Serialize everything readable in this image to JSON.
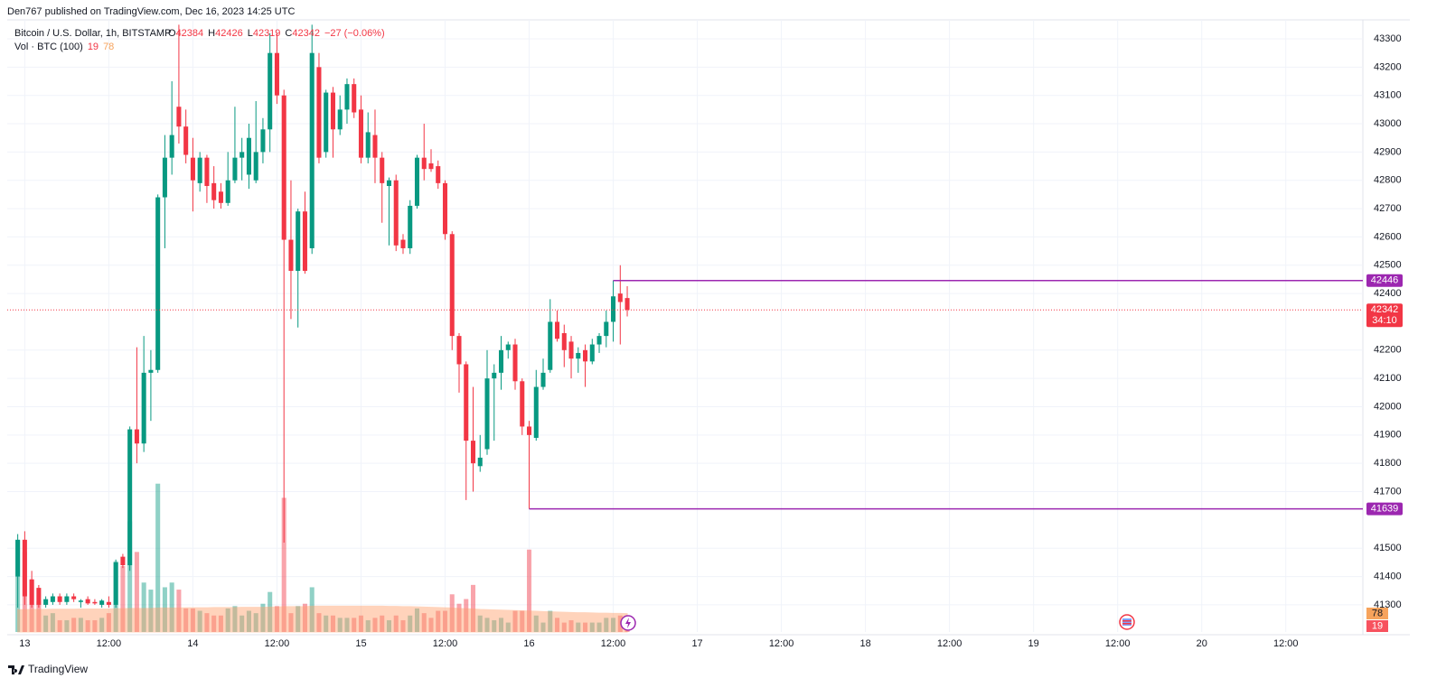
{
  "chart_data": {
    "type": "candlestick",
    "header": "Den767 published on TradingView.com, Dec 16, 2023 14:25 UTC",
    "title": "Bitcoin / U.S. Dollar, 1h, BITSTAMP",
    "legend_labels": [
      "O",
      "H",
      "L",
      "C"
    ],
    "change": "−27 (−0.06%)",
    "volume_title": "Vol · BTC (100)",
    "countdown": "34:10",
    "brand": "TradingView",
    "up_color": "#089981",
    "down_color": "#f23645",
    "volume_ma_color": "#ff9f6b",
    "grid": true,
    "time_hours": [
      -1,
      0,
      1,
      2,
      3,
      4,
      5,
      6,
      7,
      8,
      9,
      10,
      11,
      12,
      13,
      14,
      15,
      16,
      17,
      18,
      19,
      20,
      21,
      22,
      23,
      24,
      25,
      26,
      27,
      28,
      29,
      30,
      31,
      32,
      33,
      34,
      35,
      36,
      37,
      38,
      39,
      40,
      41,
      42,
      43,
      44,
      45,
      46,
      47,
      48,
      49,
      50,
      51,
      52,
      53,
      54,
      55,
      56,
      57,
      58,
      59,
      60,
      61,
      62,
      63,
      64,
      65,
      66,
      67,
      68,
      69,
      70,
      71,
      72,
      73,
      74,
      75,
      76,
      77,
      78,
      79,
      80,
      81,
      82,
      83,
      84,
      85,
      86
    ],
    "open": [
      41400,
      41530,
      41390,
      41360,
      41300,
      41310,
      41330,
      41310,
      41330,
      41310,
      41320,
      41310,
      41300,
      41310,
      41300,
      41470,
      41440,
      41920,
      41870,
      42120,
      42130,
      42740,
      42880,
      43060,
      42990,
      42880,
      42790,
      42880,
      42790,
      42760,
      42720,
      42800,
      42880,
      42820,
      42800,
      42900,
      42980,
      43250,
      43100,
      42590,
      42480,
      42690,
      42560,
      43200,
      42900,
      43110,
      42980,
      43050,
      43140,
      43050,
      42880,
      42960,
      42880,
      42780,
      42800,
      42590,
      42560,
      42710,
      42880,
      42860,
      42850,
      42790,
      42610,
      42250,
      42150,
      41880,
      41790,
      41850,
      42100,
      42120,
      42200,
      42220,
      42090,
      41930,
      41890,
      42070,
      42130,
      42300,
      42260,
      42230,
      42170,
      42200,
      42160,
      42220,
      42250,
      42300,
      42400,
      42384
    ],
    "high": [
      41550,
      41560,
      41420,
      41370,
      41330,
      41340,
      41340,
      41340,
      41340,
      41320,
      41330,
      41320,
      41320,
      41330,
      41460,
      41480,
      41930,
      42210,
      42250,
      42200,
      42750,
      42960,
      43150,
      43350,
      43050,
      42950,
      42900,
      42890,
      42850,
      42790,
      42900,
      43060,
      42950,
      43000,
      43080,
      43020,
      43320,
      43320,
      43120,
      42800,
      42700,
      42760,
      43350,
      43250,
      43120,
      43130,
      43100,
      43160,
      43160,
      43100,
      43040,
      43050,
      42900,
      42810,
      42820,
      42610,
      42730,
      42890,
      43000,
      42910,
      42870,
      42800,
      42620,
      42260,
      42160,
      42070,
      41900,
      42200,
      42150,
      42250,
      42230,
      42240,
      42100,
      41950,
      42130,
      42170,
      42380,
      42340,
      42290,
      42250,
      42210,
      42220,
      42240,
      42260,
      42340,
      42446,
      42500,
      42426
    ],
    "low": [
      41290,
      41300,
      41290,
      41290,
      41290,
      41300,
      41300,
      41300,
      41310,
      41290,
      41300,
      41300,
      41290,
      41290,
      41290,
      41430,
      41420,
      41800,
      41840,
      41950,
      42120,
      42560,
      42820,
      42930,
      42860,
      42690,
      42760,
      42720,
      42700,
      42700,
      42710,
      42790,
      42800,
      42770,
      42790,
      42860,
      42900,
      43070,
      41520,
      42310,
      42280,
      42470,
      42540,
      42860,
      42880,
      42880,
      42960,
      43000,
      43020,
      42860,
      42860,
      42790,
      42650,
      42570,
      42550,
      42540,
      42540,
      42700,
      42800,
      42830,
      42770,
      42590,
      42200,
      42050,
      41670,
      41700,
      41770,
      41830,
      41880,
      42060,
      42170,
      42060,
      41900,
      41639,
      41880,
      42060,
      42120,
      42230,
      42140,
      42100,
      42120,
      42070,
      42150,
      42190,
      42210,
      42230,
      42220,
      42319
    ],
    "close": [
      41530,
      41330,
      41300,
      41300,
      41320,
      41330,
      41310,
      41330,
      41320,
      41315,
      41305,
      41305,
      41315,
      41300,
      41450,
      41440,
      41920,
      41870,
      42120,
      42130,
      42740,
      42880,
      42960,
      42990,
      42890,
      42800,
      42880,
      42780,
      42730,
      42720,
      42800,
      42880,
      42900,
      42950,
      42900,
      42980,
      43250,
      43100,
      42590,
      42480,
      42690,
      42480,
      43250,
      42880,
      43110,
      42980,
      43050,
      43140,
      43040,
      42880,
      42970,
      42880,
      42790,
      42800,
      42570,
      42560,
      42710,
      42880,
      42840,
      42840,
      42790,
      42610,
      42250,
      42150,
      41880,
      41800,
      41820,
      42100,
      42120,
      42200,
      42220,
      42090,
      41930,
      41900,
      42070,
      42120,
      42300,
      42240,
      42200,
      42170,
      42190,
      42160,
      42220,
      42250,
      42300,
      42390,
      42370,
      42342
    ],
    "volume": [
      390,
      340,
      220,
      130,
      70,
      80,
      50,
      50,
      60,
      60,
      50,
      50,
      60,
      80,
      300,
      280,
      470,
      340,
      210,
      180,
      630,
      190,
      210,
      180,
      100,
      100,
      90,
      80,
      70,
      70,
      100,
      110,
      70,
      90,
      80,
      120,
      170,
      110,
      570,
      80,
      110,
      120,
      190,
      80,
      70,
      70,
      60,
      60,
      60,
      70,
      50,
      60,
      70,
      50,
      70,
      50,
      70,
      100,
      80,
      60,
      90,
      90,
      160,
      120,
      140,
      200,
      70,
      60,
      50,
      60,
      40,
      90,
      90,
      350,
      70,
      40,
      90,
      60,
      40,
      50,
      40,
      40,
      40,
      40,
      60,
      60,
      70,
      19
    ],
    "volume_ma": [
      95,
      95,
      96,
      96,
      96,
      97,
      97,
      97,
      97,
      98,
      98,
      98,
      98,
      98,
      99,
      99,
      100,
      100,
      100,
      100,
      102,
      102,
      102,
      102,
      103,
      103,
      103,
      103,
      104,
      104,
      104,
      104,
      105,
      105,
      105,
      105,
      106,
      106,
      108,
      108,
      108,
      108,
      110,
      110,
      110,
      110,
      110,
      110,
      110,
      110,
      110,
      110,
      110,
      109,
      109,
      108,
      108,
      107,
      106,
      105,
      104,
      103,
      102,
      100,
      99,
      98,
      96,
      95,
      94,
      93,
      92,
      91,
      90,
      89,
      88,
      87,
      86,
      85,
      84,
      83,
      82,
      82,
      81,
      80,
      80,
      79,
      79,
      78
    ],
    "levels": [
      {
        "value": 42446,
        "start": 84,
        "color": "#9c27b0"
      },
      {
        "value": 41639,
        "start": 72,
        "color": "#9c27b0"
      }
    ],
    "xlim": [
      -2.5,
      191
    ],
    "ylim": [
      41204,
      43367
    ],
    "volume_ylim": [
      0,
      2600
    ],
    "yticks": [
      41300,
      41400,
      41500,
      41700,
      41800,
      41900,
      42000,
      42100,
      42200,
      42400,
      42500,
      42600,
      42700,
      42800,
      42900,
      43000,
      43100,
      43200,
      43300
    ],
    "xticks": [
      {
        "value": 0,
        "label": "13"
      },
      {
        "value": 12,
        "label": "12:00"
      },
      {
        "value": 24,
        "label": "14"
      },
      {
        "value": 36,
        "label": "12:00"
      },
      {
        "value": 48,
        "label": "15"
      },
      {
        "value": 60,
        "label": "12:00"
      },
      {
        "value": 72,
        "label": "16"
      },
      {
        "value": 84,
        "label": "12:00"
      },
      {
        "value": 96,
        "label": "17"
      },
      {
        "value": 108,
        "label": "12:00"
      },
      {
        "value": 120,
        "label": "18"
      },
      {
        "value": 132,
        "label": "12:00"
      },
      {
        "value": 144,
        "label": "19"
      },
      {
        "value": 156,
        "label": "12:00"
      },
      {
        "value": 168,
        "label": "20"
      },
      {
        "value": 180,
        "label": "12:00"
      }
    ]
  }
}
